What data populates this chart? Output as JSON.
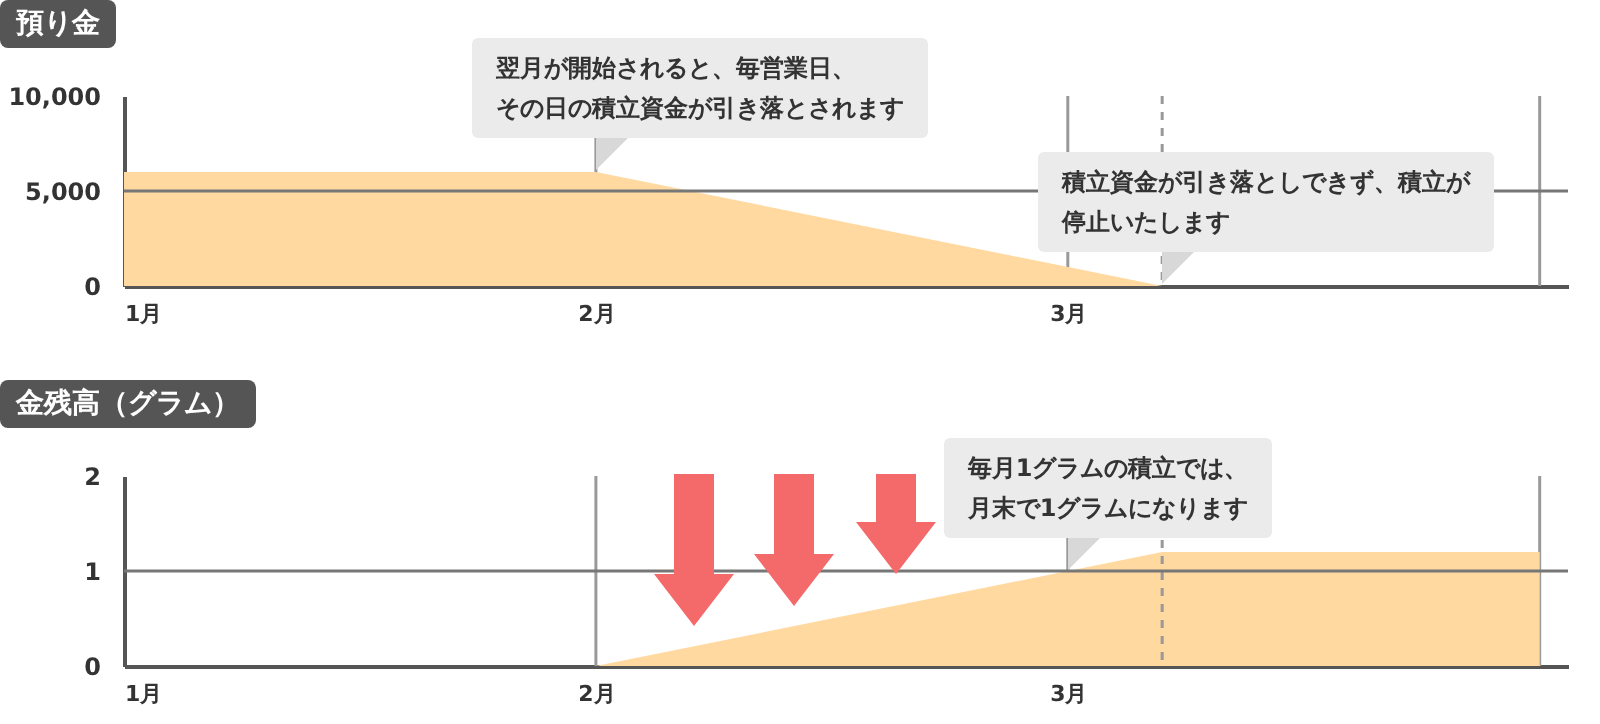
{
  "chart_data": [
    {
      "type": "area",
      "title": "預り金",
      "x": [
        1,
        2,
        3.2
      ],
      "values": [
        6000,
        6000,
        0
      ],
      "color": "#ffd9a0",
      "xlim": [
        1,
        4.06
      ],
      "xticks": [
        {
          "value": 1,
          "label": "1月"
        },
        {
          "value": 2,
          "label": "2月"
        },
        {
          "value": 3,
          "label": "3月"
        },
        {
          "value": 4,
          "label": null
        }
      ],
      "ylim": [
        0,
        10000
      ],
      "yticks": [
        {
          "value": 0,
          "label": "0"
        },
        {
          "value": 5000,
          "label": "5,000"
        },
        {
          "value": 10000,
          "label": "10,000"
        }
      ],
      "grid": "x",
      "ref_lines": [
        {
          "axis": "x",
          "value": 3.2,
          "line_style": "dashed"
        },
        {
          "axis": "y",
          "value": 5000,
          "color": "#777777"
        }
      ],
      "annotations": [
        {
          "text": "翌月が開始されると、毎営業日、その日の積立資金が引き落とされます",
          "x": 2,
          "y": 6000
        },
        {
          "text": "積立資金が引き落としできず、積立が停止いたします",
          "x": 3.2,
          "y": 0
        }
      ]
    },
    {
      "type": "area",
      "title": "金残高（グラム）",
      "x": [
        2,
        3.2,
        4
      ],
      "values": [
        0,
        1.2,
        1.2
      ],
      "color": "#ffd9a0",
      "xlim": [
        1,
        4.06
      ],
      "xticks": [
        {
          "value": 1,
          "label": "1月"
        },
        {
          "value": 2,
          "label": "2月"
        },
        {
          "value": 3,
          "label": "3月"
        },
        {
          "value": 4,
          "label": null
        }
      ],
      "ylim": [
        0,
        2
      ],
      "yticks": [
        0,
        1,
        2
      ],
      "grid": "x",
      "ref_lines": [
        {
          "axis": "x",
          "value": 3.2,
          "line_style": "dashed"
        },
        {
          "axis": "y",
          "value": 1,
          "color": "#777777"
        }
      ],
      "annotations": [
        {
          "text": "毎月1グラムの積立では、月末で1グラムになります",
          "x": 3,
          "y": 1
        }
      ]
    }
  ]
}
